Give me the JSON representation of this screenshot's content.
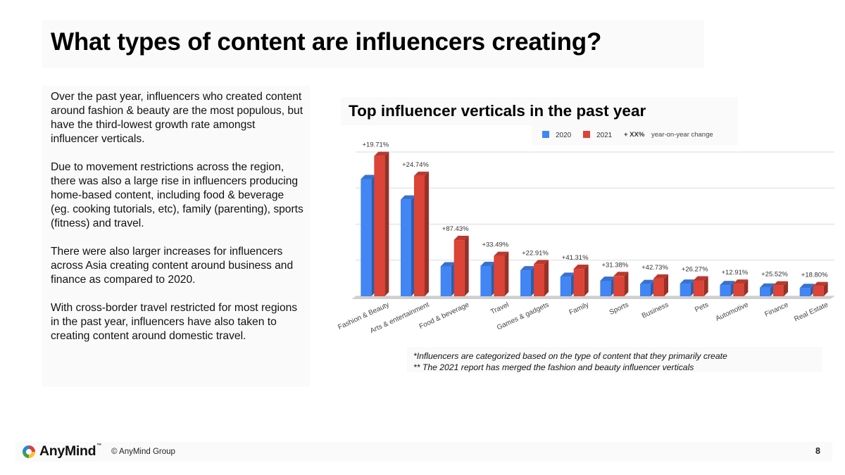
{
  "page": {
    "title": "What types of content are influencers creating?",
    "paragraphs": [
      "Over the past year, influencers who created content around fashion & beauty are the most populous, but have the third-lowest growth rate amongst influencer verticals.",
      "Due to movement restrictions across the region, there was also a large rise in influencers producing home-based content, including food & beverage (eg. cooking tutorials, etc), family (parenting), sports (fitness) and travel.",
      "There were also larger increases for influencers across Asia creating content around business and finance as compared to 2020.",
      "With cross-border travel restricted for most regions in the past year, influencers have also taken to creating content around domestic travel."
    ],
    "notes": [
      "*Influencers are categorized based on the type of content that they primarily create",
      "** The 2021 report has merged the fashion and beauty influencer verticals"
    ]
  },
  "footer": {
    "brand": "AnyMind",
    "trademark": "™",
    "copyright": "© AnyMind Group",
    "page_number": "8"
  },
  "chart_data": {
    "type": "bar",
    "title": "Top influencer verticals in the past year",
    "categories": [
      "Fashion & Beauty",
      "Arts & entertainment",
      "Food & beverage",
      "Travel",
      "Games & gadgets",
      "Family",
      "Sports",
      "Business",
      "Pets",
      "Automotive",
      "Finance",
      "Real Estate"
    ],
    "series": [
      {
        "name": "2020",
        "color": "#4285f4",
        "values": [
          32.5,
          26.8,
          8.3,
          8.4,
          7.2,
          5.4,
          4.3,
          3.4,
          3.5,
          3.1,
          2.4,
          2.3
        ]
      },
      {
        "name": "2021",
        "color": "#db4437",
        "values": [
          38.9,
          33.4,
          15.6,
          11.2,
          8.9,
          7.6,
          5.6,
          4.9,
          4.4,
          3.5,
          3.0,
          2.8
        ]
      }
    ],
    "annotations": [
      "+19.71%",
      "+24.74%",
      "+87.43%",
      "+33.49%",
      "+22.91%",
      "+41.31%",
      "+31.38%",
      "+42.73%",
      "+26.27%",
      "+12.91%",
      "+25.52%",
      "+18.80%"
    ],
    "legend_note_bold": "+ XX%",
    "legend_note_text": "year-on-year change",
    "ylim": [
      0,
      40
    ],
    "grid": true,
    "legend_position": "top-right"
  }
}
